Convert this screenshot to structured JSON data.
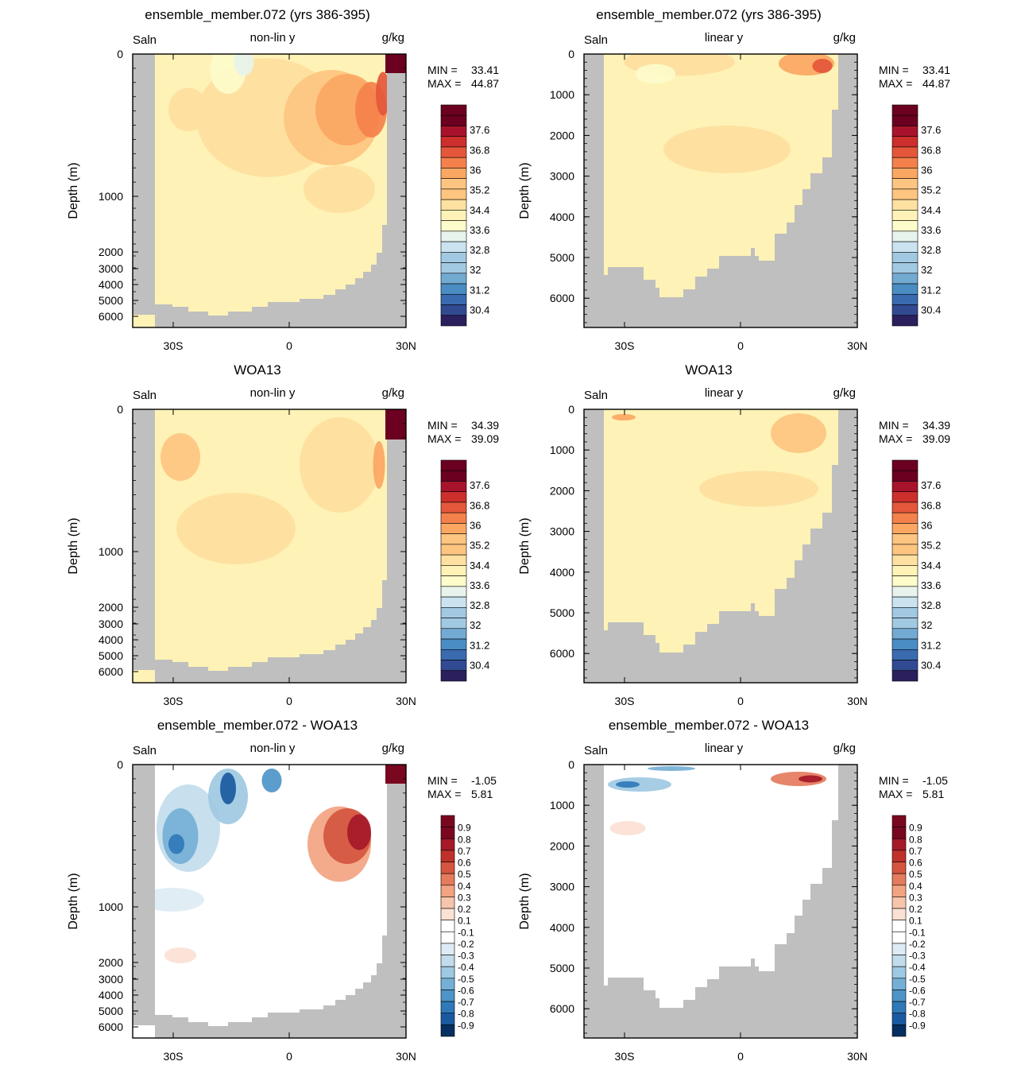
{
  "colors": {
    "land": "#bfbfbf",
    "salinity_palette": [
      "#2c1f5e",
      "#314a92",
      "#3a6ab0",
      "#4a8dc4",
      "#72aad2",
      "#a2c9e2",
      "#cbe3f0",
      "#e7f3ec",
      "#fdfccb",
      "#fef2b6",
      "#fee0a0",
      "#fdc580",
      "#fba763",
      "#f4814b",
      "#e4573b",
      "#cc2f2c",
      "#a8132c",
      "#6b0021"
    ],
    "anomaly_palette": [
      "#052f61",
      "#1a5aa0",
      "#2f79b8",
      "#4d95c8",
      "#75afd6",
      "#9ec9e2",
      "#c3dceb",
      "#deebf4",
      "#ffffff",
      "#ffffff",
      "#fbe1d4",
      "#f7c5ab",
      "#f2a482",
      "#e57b5d",
      "#d5553f",
      "#c0312b",
      "#a51928",
      "#7a0720"
    ]
  },
  "chart_data": [
    {
      "id": "p1",
      "type": "contour",
      "title": "ensemble_member.072 (yrs 386-395)",
      "left_label": "Saln",
      "center_label": "non-lin y",
      "right_label": "g/kg",
      "ylabel": "Depth (m)",
      "y_scale": "non-linear",
      "y_ticks": [
        "0",
        "1000",
        "2000",
        "3000",
        "4000",
        "5000",
        "6000"
      ],
      "x_ticks": [
        "30S",
        "0",
        "30N"
      ],
      "stats": {
        "min_label": "MIN =",
        "min": "33.41",
        "max_label": "MAX =",
        "max": "44.87"
      },
      "colorbar_labels": [
        "37.6",
        "36.8",
        "36",
        "35.2",
        "34.4",
        "33.6",
        "32.8",
        "32",
        "31.2",
        "30.4"
      ]
    },
    {
      "id": "p2",
      "type": "contour",
      "title": "ensemble_member.072 (yrs 386-395)",
      "left_label": "Saln",
      "center_label": "linear y",
      "right_label": "g/kg",
      "ylabel": "Depth (m)",
      "y_scale": "linear",
      "y_ticks": [
        "0",
        "1000",
        "2000",
        "3000",
        "4000",
        "5000",
        "6000"
      ],
      "x_ticks": [
        "30S",
        "0",
        "30N"
      ],
      "stats": {
        "min_label": "MIN =",
        "min": "33.41",
        "max_label": "MAX =",
        "max": "44.87"
      },
      "colorbar_labels": [
        "37.6",
        "36.8",
        "36",
        "35.2",
        "34.4",
        "33.6",
        "32.8",
        "32",
        "31.2",
        "30.4"
      ]
    },
    {
      "id": "p3",
      "type": "contour",
      "title": "WOA13",
      "left_label": "Saln",
      "center_label": "non-lin y",
      "right_label": "g/kg",
      "ylabel": "Depth (m)",
      "y_scale": "non-linear",
      "y_ticks": [
        "0",
        "1000",
        "2000",
        "3000",
        "4000",
        "5000",
        "6000"
      ],
      "x_ticks": [
        "30S",
        "0",
        "30N"
      ],
      "stats": {
        "min_label": "MIN =",
        "min": "34.39",
        "max_label": "MAX =",
        "max": "39.09"
      },
      "colorbar_labels": [
        "37.6",
        "36.8",
        "36",
        "35.2",
        "34.4",
        "33.6",
        "32.8",
        "32",
        "31.2",
        "30.4"
      ]
    },
    {
      "id": "p4",
      "type": "contour",
      "title": "WOA13",
      "left_label": "Saln",
      "center_label": "linear y",
      "right_label": "g/kg",
      "ylabel": "Depth (m)",
      "y_scale": "linear",
      "y_ticks": [
        "0",
        "1000",
        "2000",
        "3000",
        "4000",
        "5000",
        "6000"
      ],
      "x_ticks": [
        "30S",
        "0",
        "30N"
      ],
      "stats": {
        "min_label": "MIN =",
        "min": "34.39",
        "max_label": "MAX =",
        "max": "39.09"
      },
      "colorbar_labels": [
        "37.6",
        "36.8",
        "36",
        "35.2",
        "34.4",
        "33.6",
        "32.8",
        "32",
        "31.2",
        "30.4"
      ]
    },
    {
      "id": "p5",
      "type": "contour",
      "title": "ensemble_member.072 - WOA13",
      "left_label": "Saln",
      "center_label": "non-lin y",
      "right_label": "g/kg",
      "ylabel": "Depth (m)",
      "y_scale": "non-linear",
      "y_ticks": [
        "0",
        "1000",
        "2000",
        "3000",
        "4000",
        "5000",
        "6000"
      ],
      "x_ticks": [
        "30S",
        "0",
        "30N"
      ],
      "stats": {
        "min_label": "MIN =",
        "min": "-1.05",
        "max_label": "MAX =",
        "max": "5.81"
      },
      "colorbar_labels": [
        "0.9",
        "0.8",
        "0.7",
        "0.6",
        "0.5",
        "0.4",
        "0.3",
        "0.2",
        "0.1",
        "-0.1",
        "-0.2",
        "-0.3",
        "-0.4",
        "-0.5",
        "-0.6",
        "-0.7",
        "-0.8",
        "-0.9"
      ]
    },
    {
      "id": "p6",
      "type": "contour",
      "title": "ensemble_member.072 - WOA13",
      "left_label": "Saln",
      "center_label": "linear y",
      "right_label": "g/kg",
      "ylabel": "Depth (m)",
      "y_scale": "linear",
      "y_ticks": [
        "0",
        "1000",
        "2000",
        "3000",
        "4000",
        "5000",
        "6000"
      ],
      "x_ticks": [
        "30S",
        "0",
        "30N"
      ],
      "stats": {
        "min_label": "MIN =",
        "min": "-1.05",
        "max_label": "MAX =",
        "max": "5.81"
      },
      "colorbar_labels": [
        "0.9",
        "0.8",
        "0.7",
        "0.6",
        "0.5",
        "0.4",
        "0.3",
        "0.2",
        "0.1",
        "-0.1",
        "-0.2",
        "-0.3",
        "-0.4",
        "-0.5",
        "-0.6",
        "-0.7",
        "-0.8",
        "-0.9"
      ]
    }
  ]
}
